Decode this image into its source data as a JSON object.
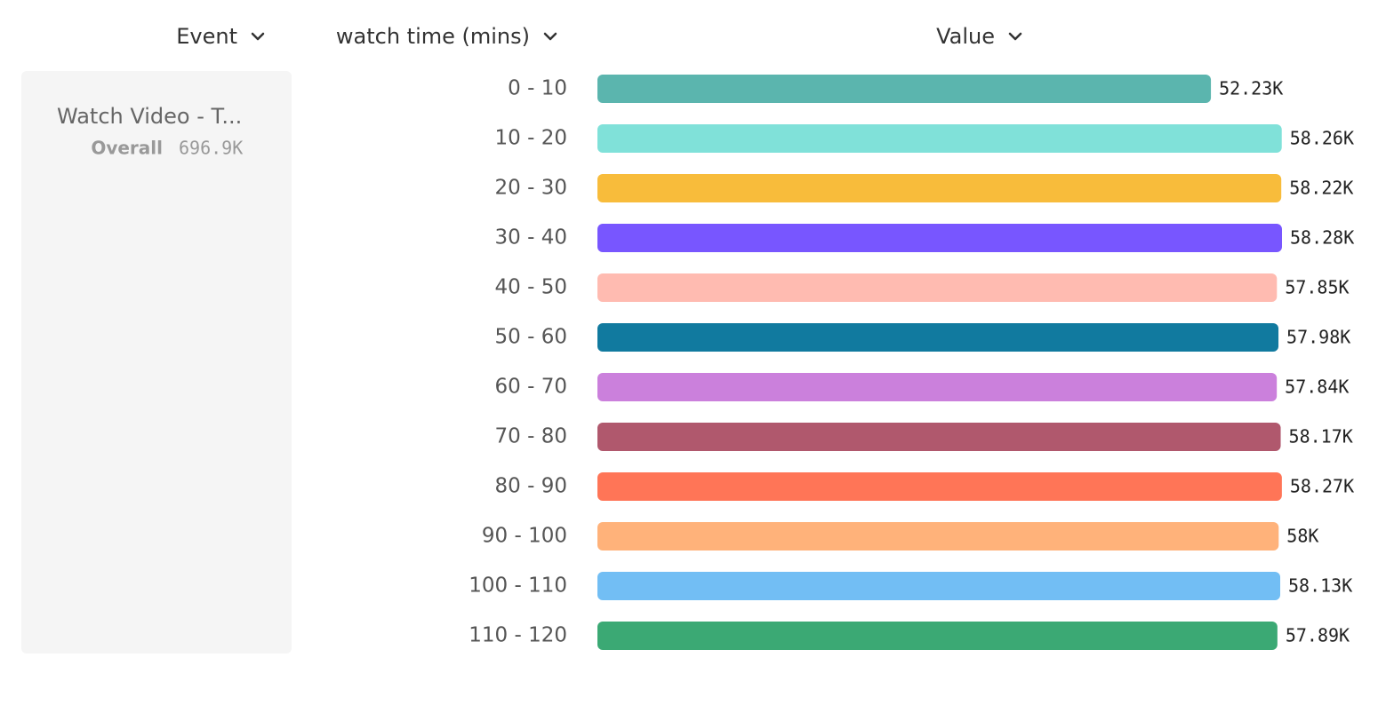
{
  "columns": [
    "Event",
    "watch time (mins)",
    "Value"
  ],
  "event": {
    "name": "Watch Video - T...",
    "overall_label": "Overall",
    "overall_value": "696.9K"
  },
  "chart_data": {
    "type": "bar",
    "orientation": "horizontal",
    "categories": [
      "0 - 10",
      "10 - 20",
      "20 - 30",
      "30 - 40",
      "40 - 50",
      "50 - 60",
      "60 - 70",
      "70 - 80",
      "80 - 90",
      "90 - 100",
      "100 - 110",
      "110 - 120"
    ],
    "values": [
      52230,
      58260,
      58220,
      58280,
      57850,
      57980,
      57840,
      58170,
      58270,
      58000,
      58130,
      57890
    ],
    "value_labels": [
      "52.23K",
      "58.26K",
      "58.22K",
      "58.28K",
      "57.85K",
      "57.98K",
      "57.84K",
      "58.17K",
      "58.27K",
      "58K",
      "58.13K",
      "57.89K"
    ],
    "colors": [
      "#5bb5ae",
      "#80e1d9",
      "#f8bc3b",
      "#7856ff",
      "#ffbbb1",
      "#117a9f",
      "#cb80dc",
      "#b0586d",
      "#ff7557",
      "#ffb27a",
      "#72bef4",
      "#3ba974"
    ]
  }
}
